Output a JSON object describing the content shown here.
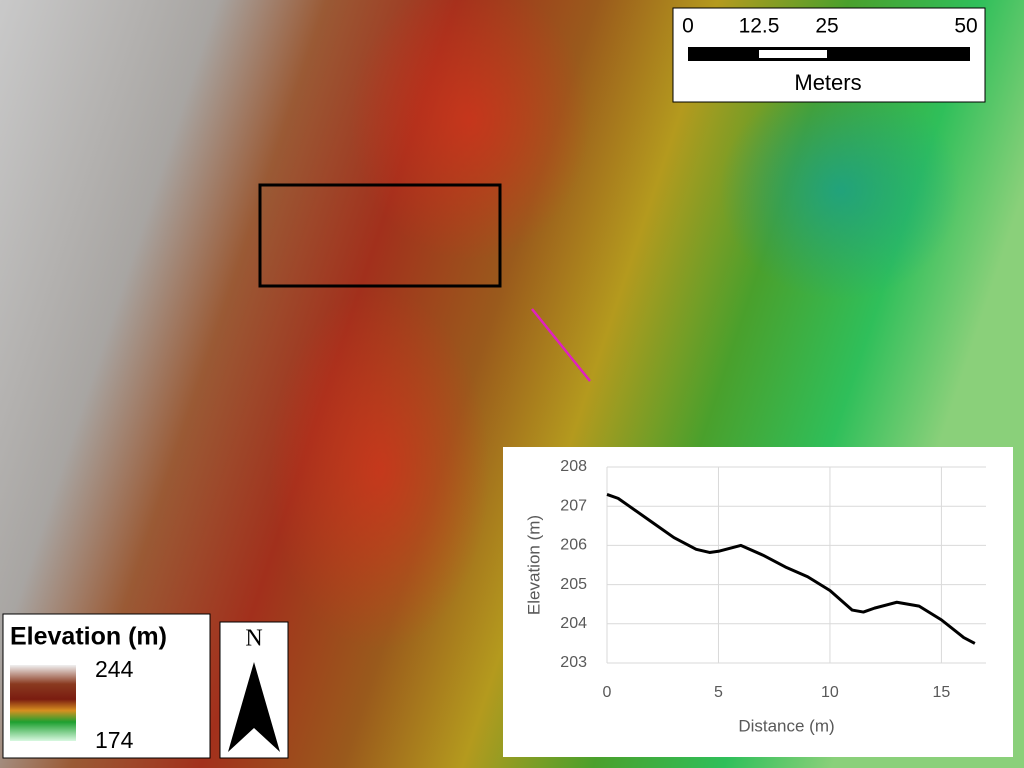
{
  "legend": {
    "title": "Elevation (m)",
    "max": 244,
    "min": 174
  },
  "scale_bar": {
    "labels": [
      "0",
      "12.5",
      "25",
      "50"
    ],
    "unit": "Meters"
  },
  "north_arrow": {
    "label": "N"
  },
  "chart_data": {
    "type": "line",
    "xlabel": "Distance (m)",
    "ylabel": "Elevation (m)",
    "x": [
      0,
      0.5,
      1,
      2,
      3,
      4,
      4.6,
      5,
      6,
      7,
      8,
      9,
      10,
      11,
      11.5,
      12,
      13,
      14,
      15,
      16,
      16.5
    ],
    "values": [
      207.3,
      207.2,
      207.0,
      206.6,
      206.2,
      205.9,
      205.82,
      205.85,
      206.0,
      205.75,
      205.45,
      205.2,
      204.85,
      204.35,
      204.3,
      204.4,
      204.55,
      204.45,
      204.1,
      203.65,
      203.5
    ],
    "color": "#000000",
    "xlim": [
      0,
      17
    ],
    "xticks": [
      0,
      5,
      10,
      15
    ],
    "ylim": [
      203,
      208
    ],
    "yticks": [
      203,
      204,
      205,
      206,
      207,
      208
    ],
    "grid": true
  }
}
